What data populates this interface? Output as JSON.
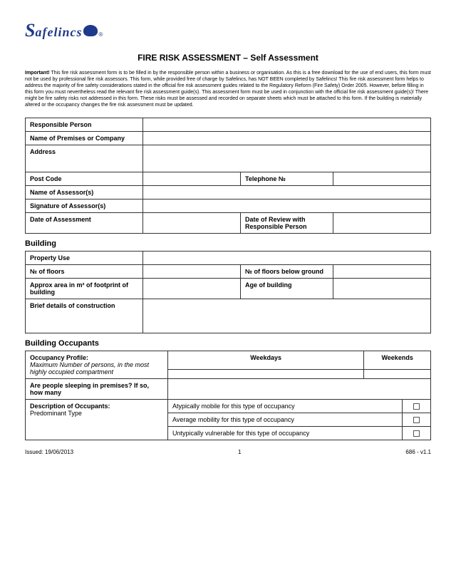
{
  "logo": {
    "s": "S",
    "rest": "afelincs",
    "reg": "®"
  },
  "title": "FIRE RISK ASSESSMENT – Self Assessment",
  "important": {
    "label": "Important!",
    "text": " This fire risk assessment form is to be filled in by the responsible person within a business or organisation. As this is a free download for the use of end users, this form must not be used by professional fire risk assessors. This form, while provided free of charge by Safelincs, has NOT BEEN completed by Safelincs! This fire risk assessment form helps to address the majority of fire safety considerations stated in the official fire risk assessment guides related to the Regulatory Reform (Fire Safety) Order 2005. However, before filling in this form you must nevertheless read the relevant fire risk assessment guide(s). This assessment form must be used in conjunction with the official fire risk assessment guide(s)! There might be fire safety risks not addressed in this form. These risks must be assessed and recorded on separate sheets which must be attached to this form. If the building is materially altered or the occupancy changes the fire risk assessment must be updated."
  },
  "t1": {
    "responsible_person": "Responsible Person",
    "premises": "Name of Premises or Company",
    "address": "Address",
    "postcode": "Post Code",
    "telephone": "Telephone №",
    "assessors": "Name of Assessor(s)",
    "signature": "Signature of Assessor(s)",
    "date": "Date of Assessment",
    "review": "Date of Review with Responsible Person"
  },
  "s_building": "Building",
  "t2": {
    "property_use": "Property Use",
    "floors": "№ of floors",
    "floors_below": "№ of floors below ground",
    "area": "Approx area in m² of footprint of building",
    "age": "Age of building",
    "construction": "Brief details of construction"
  },
  "s_occupants": "Building Occupants",
  "t3": {
    "profile": "Occupancy Profile:",
    "profile_sub": "Maximum Number of persons, in the most highly occupied compartment",
    "weekdays": "Weekdays",
    "weekends": "Weekends",
    "sleeping": "Are people sleeping in premises? If so, how many",
    "desc": "Description of Occupants:",
    "desc_sub": "Predominant Type",
    "opt1": "Atypically mobile for this type of occupancy",
    "opt2": "Average mobility for this type of occupancy",
    "opt3": "Untypically vulnerable for this type of occupancy"
  },
  "footer": {
    "issued": "Issued: 19/06/2013",
    "page": "1",
    "ver": "686 - v1.1"
  }
}
